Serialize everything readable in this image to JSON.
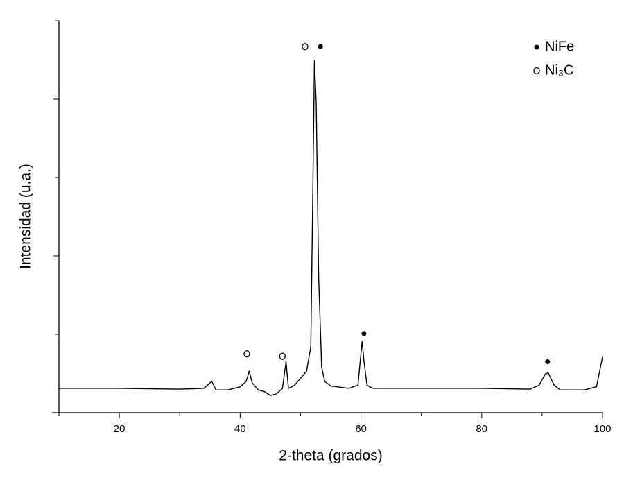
{
  "chart_data": {
    "type": "line",
    "xlabel": "2-theta (grados)",
    "ylabel": "Intensidad (u.a.)",
    "xlim": [
      10,
      100
    ],
    "xticks": [
      20,
      40,
      60,
      80,
      100
    ],
    "xminor_ticks": [
      10,
      30,
      50,
      70,
      90
    ],
    "ylim": [
      0,
      5
    ],
    "yticks": [
      0,
      2,
      4
    ],
    "yminor_ticks": [
      1,
      3,
      5
    ],
    "ytick_labels": false,
    "series": [
      {
        "color": "#000000",
        "x": [
          10,
          20,
          30,
          34,
          35.3,
          36,
          38,
          40,
          41,
          41.5,
          42,
          43,
          44,
          45,
          46,
          47,
          47.6,
          48,
          49,
          50,
          51,
          51.7,
          52.0,
          52.3,
          52.6,
          53,
          53.5,
          54,
          55,
          58,
          59.5,
          60.2,
          60.5,
          61,
          62,
          70,
          80,
          88,
          89.5,
          90.5,
          91,
          92,
          93,
          97,
          99,
          100
        ],
        "values": [
          0.31,
          0.31,
          0.3,
          0.31,
          0.4,
          0.29,
          0.29,
          0.33,
          0.4,
          0.53,
          0.38,
          0.29,
          0.27,
          0.22,
          0.24,
          0.31,
          0.65,
          0.31,
          0.35,
          0.44,
          0.53,
          0.84,
          2.61,
          4.49,
          3.94,
          1.73,
          0.58,
          0.4,
          0.34,
          0.31,
          0.35,
          0.91,
          0.66,
          0.35,
          0.31,
          0.31,
          0.31,
          0.3,
          0.35,
          0.49,
          0.51,
          0.35,
          0.29,
          0.29,
          0.33,
          0.71
        ]
      }
    ],
    "markers": [
      {
        "x": 50.75,
        "y": 4.67,
        "marker": "open"
      },
      {
        "x": 53.3,
        "y": 4.67,
        "marker": "filled"
      },
      {
        "x": 41.1,
        "y": 0.75,
        "marker": "open"
      },
      {
        "x": 47.0,
        "y": 0.72,
        "marker": "open"
      },
      {
        "x": 60.5,
        "y": 1.01,
        "marker": "filled"
      },
      {
        "x": 90.9,
        "y": 0.65,
        "marker": "filled"
      }
    ],
    "legend": [
      {
        "name": "NiFe",
        "marker": "filled"
      },
      {
        "name": "Ni₃C",
        "marker": "open"
      }
    ],
    "legend_position": "upper right"
  }
}
